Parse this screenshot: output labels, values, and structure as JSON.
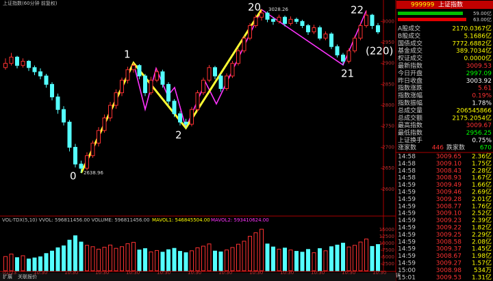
{
  "chart_data": {
    "type": "candlestick",
    "title": "上证指数(60分钟 前复权)",
    "ylim": [
      2541,
      3038
    ],
    "yticks": [
      2600,
      2650,
      2700,
      2750,
      2800,
      2850,
      2900,
      2950,
      3000
    ],
    "up_color": "#ff3232",
    "down_color": "#54ffff",
    "ohlc": [
      [
        2890,
        2912,
        2885,
        2900
      ],
      [
        2900,
        2925,
        2895,
        2915
      ],
      [
        2915,
        2918,
        2888,
        2895
      ],
      [
        2895,
        2912,
        2890,
        2905
      ],
      [
        2905,
        2908,
        2882,
        2890
      ],
      [
        2890,
        2895,
        2872,
        2880
      ],
      [
        2880,
        2888,
        2862,
        2870
      ],
      [
        2870,
        2875,
        2842,
        2850
      ],
      [
        2850,
        2855,
        2812,
        2820
      ],
      [
        2820,
        2828,
        2780,
        2790
      ],
      [
        2790,
        2798,
        2752,
        2760
      ],
      [
        2760,
        2765,
        2690,
        2700
      ],
      [
        2700,
        2708,
        2652,
        2660
      ],
      [
        2660,
        2668,
        2638.96,
        2650
      ],
      [
        2650,
        2688,
        2645,
        2680
      ],
      [
        2680,
        2716,
        2675,
        2710
      ],
      [
        2710,
        2748,
        2702,
        2740
      ],
      [
        2740,
        2778,
        2735,
        2770
      ],
      [
        2770,
        2808,
        2762,
        2800
      ],
      [
        2800,
        2838,
        2792,
        2830
      ],
      [
        2830,
        2866,
        2822,
        2860
      ],
      [
        2860,
        2892,
        2852,
        2885
      ],
      [
        2885,
        2901,
        2878,
        2895
      ],
      [
        2895,
        2898,
        2862,
        2870
      ],
      [
        2870,
        2875,
        2822,
        2830
      ],
      [
        2830,
        2868,
        2825,
        2860
      ],
      [
        2860,
        2888,
        2855,
        2880
      ],
      [
        2880,
        2885,
        2842,
        2850
      ],
      [
        2850,
        2855,
        2802,
        2810
      ],
      [
        2810,
        2815,
        2772,
        2780
      ],
      [
        2780,
        2786,
        2752,
        2760
      ],
      [
        2760,
        2768,
        2746,
        2755
      ],
      [
        2755,
        2796,
        2750,
        2790
      ],
      [
        2790,
        2836,
        2785,
        2830
      ],
      [
        2830,
        2866,
        2825,
        2860
      ],
      [
        2860,
        2896,
        2855,
        2890
      ],
      [
        2890,
        2894,
        2862,
        2870
      ],
      [
        2870,
        2875,
        2832,
        2840
      ],
      [
        2840,
        2876,
        2835,
        2870
      ],
      [
        2870,
        2906,
        2865,
        2900
      ],
      [
        2900,
        2936,
        2895,
        2930
      ],
      [
        2930,
        2966,
        2925,
        2960
      ],
      [
        2960,
        2996,
        2955,
        2990
      ],
      [
        2990,
        3016,
        2985,
        3010
      ],
      [
        3010,
        3028.26,
        3002,
        3020
      ],
      [
        3020,
        3024,
        2998,
        3005
      ],
      [
        3005,
        3010,
        2992,
        3000
      ],
      [
        3000,
        3016,
        2995,
        3010
      ],
      [
        3010,
        3014,
        2988,
        2995
      ],
      [
        2995,
        3012,
        2990,
        3005
      ],
      [
        3005,
        3009,
        2994,
        3000
      ],
      [
        3000,
        3004,
        2984,
        2990
      ],
      [
        2990,
        2994,
        2968,
        2975
      ],
      [
        2975,
        2992,
        2970,
        2985
      ],
      [
        2985,
        2990,
        2955,
        2960
      ],
      [
        2960,
        2976,
        2955,
        2970
      ],
      [
        2970,
        2974,
        2934,
        2940
      ],
      [
        2940,
        2945,
        2914,
        2920
      ],
      [
        2920,
        2925,
        2896,
        2905
      ],
      [
        2905,
        2936,
        2900,
        2930
      ],
      [
        2930,
        2966,
        2925,
        2960
      ],
      [
        2960,
        2996,
        2955,
        2990
      ],
      [
        2990,
        3026,
        2985,
        3015
      ],
      [
        3015,
        3018,
        2982,
        2990
      ],
      [
        2990,
        2996,
        2970,
        2975
      ]
    ],
    "volume": [
      5200,
      6100,
      4800,
      5500,
      4300,
      4700,
      5100,
      6300,
      7200,
      8400,
      9100,
      11200,
      12800,
      10500,
      9300,
      8800,
      7900,
      8600,
      9400,
      8200,
      8800,
      9900,
      10400,
      7600,
      8100,
      6900,
      7400,
      6800,
      7700,
      8200,
      7100,
      6600,
      7300,
      8400,
      9000,
      9800,
      7200,
      6900,
      7600,
      8500,
      9700,
      10800,
      12600,
      13900,
      15200,
      9800,
      8700,
      7900,
      8300,
      7600,
      7100,
      6800,
      7800,
      6600,
      8100,
      7300,
      8800,
      9400,
      10100,
      8700,
      9300,
      10500,
      11600,
      8900,
      9600
    ],
    "vlim": [
      0,
      17000
    ],
    "vticks": [
      2500,
      5000,
      7500,
      10000,
      12500,
      15000
    ],
    "volume_header": "VOL-TDX(5,10)  VVOL: 596811456.00  VOLUME: 596811456.00",
    "mavol1": "MAVOL1: 546845504.00",
    "mavol2": "MAVOL2: 593410624.00",
    "high_label": 3028.26,
    "low_label": 2638.96,
    "waves": [
      "0",
      "1",
      "2",
      "20",
      "21",
      "22",
      "(220)"
    ],
    "xlabels": [
      "01/23",
      "10:30",
      "10:30",
      "10:30",
      "10:30",
      "10:30",
      "10:30",
      "10:30",
      "10:30",
      "10:30",
      "10:30",
      "10:30",
      "10:30"
    ],
    "period_label": "60分钟"
  },
  "panel": {
    "code": "999999",
    "name": "上证指数",
    "bar1": "59.00亿",
    "bar2": "63.00亿",
    "stats": [
      {
        "label": "A股成交",
        "value": "2170.0367亿",
        "color": "#ffff00"
      },
      {
        "label": "B股成交",
        "value": "5.1686亿",
        "color": "#ffff00"
      },
      {
        "label": "国债成交",
        "value": "7772.6882亿",
        "color": "#ffff00"
      },
      {
        "label": "基金成交",
        "value": "389.7034亿",
        "color": "#ffff00"
      },
      {
        "label": "权证成交",
        "value": "0.0000亿",
        "color": "#ffff00"
      },
      {
        "label": "最新指数",
        "value": "3009.53",
        "color": "#ff3232"
      },
      {
        "label": "今日开盘",
        "value": "2997.09",
        "color": "#00ff00"
      },
      {
        "label": "昨日收盘",
        "value": "3003.92",
        "color": "#ffffff"
      },
      {
        "label": "指数涨跌",
        "value": "5.61",
        "color": "#ff3232"
      },
      {
        "label": "指数涨幅",
        "value": "0.19%",
        "color": "#ff3232"
      },
      {
        "label": "指数振幅",
        "value": "1.78%",
        "color": "#ffffff"
      },
      {
        "label": "总成交量",
        "value": "206545866",
        "color": "#ffff00"
      },
      {
        "label": "总成交额",
        "value": "2175.2054亿",
        "color": "#ffff00"
      },
      {
        "label": "最高指数",
        "value": "3009.67",
        "color": "#ff3232"
      },
      {
        "label": "最低指数",
        "value": "2956.25",
        "color": "#00ff00"
      },
      {
        "label": "上证换手",
        "value": "0.75%",
        "color": "#ffffff"
      }
    ],
    "up_label": "涨家数",
    "up_count": "446",
    "down_label": "跌家数",
    "down_count": "670",
    "ticks": [
      [
        "14:58",
        "3009.65",
        "2.36亿"
      ],
      [
        "14:58",
        "3009.10",
        "1.75亿"
      ],
      [
        "14:58",
        "3008.43",
        "2.28亿"
      ],
      [
        "14:58",
        "3008.93",
        "1.67亿"
      ],
      [
        "14:59",
        "3009.49",
        "1.66亿"
      ],
      [
        "14:59",
        "3009.46",
        "2.69亿"
      ],
      [
        "14:59",
        "3009.28",
        "2.01亿"
      ],
      [
        "14:59",
        "3008.77",
        "1.76亿"
      ],
      [
        "14:59",
        "3009.10",
        "2.52亿"
      ],
      [
        "14:59",
        "3009.23",
        "2.39亿"
      ],
      [
        "14:59",
        "3009.22",
        "1.82亿"
      ],
      [
        "14:59",
        "3009.25",
        "2.29亿"
      ],
      [
        "14:59",
        "3008.58",
        "2.08亿"
      ],
      [
        "14:59",
        "3009.37",
        "1.45亿"
      ],
      [
        "14:59",
        "3008.67",
        "1.98亿"
      ],
      [
        "14:59",
        "3009.27",
        "1.57亿"
      ],
      [
        "15:00",
        "3008.98",
        "534万"
      ],
      [
        "15:01",
        "3009.53",
        "1.31亿"
      ]
    ]
  },
  "toolbar": [
    "扩展",
    "关联报价"
  ]
}
